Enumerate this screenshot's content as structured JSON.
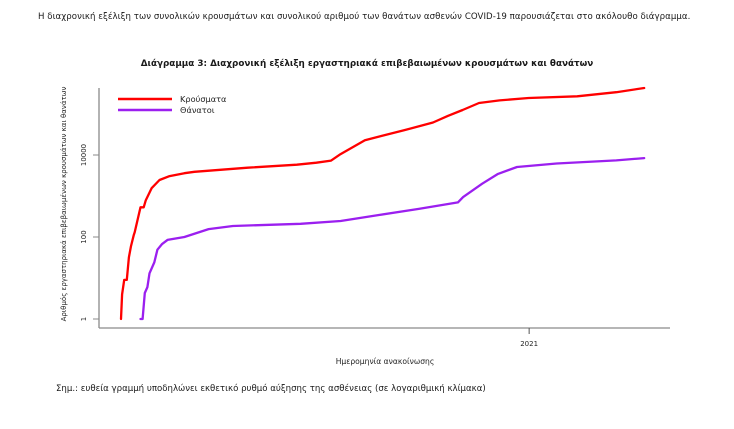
{
  "intro_text": "Η διαχρονική εξέλιξη των συνολικών κρουσμάτων και συνολικού αριθμού των θανάτων ασθενών COVID-19 παρουσιάζεται στο ακόλουθο διάγραμμα.",
  "note_text": "Σημ.: ευθεία γραμμή υποδηλώνει εκθετικό ρυθμό αύξησης της ασθένειας (σε λογαριθμική κλίμακα)",
  "chart_data": {
    "type": "line",
    "title": "Διάγραμμα 3: Διαχρονική εξέλιξη εργαστηριακά επιβεβαιωμένων κρουσμάτων και θανάτων",
    "xlabel": "Ημερομηνία ανακοίνωσης",
    "ylabel": "Αριθμός εργαστηριακά επιβεβαιωμένων κρουσμάτων και θανάτων",
    "yscale": "log",
    "y_ticks": [
      {
        "label": "1",
        "value": 1
      },
      {
        "label": "100",
        "value": 100
      },
      {
        "label": "10000",
        "value": 10000
      }
    ],
    "x_ticks": [
      {
        "label": "2021",
        "x_fraction": 0.773
      }
    ],
    "ylim": [
      1,
      400000
    ],
    "grid": false,
    "legend_position": "top-left",
    "x_note": "x is fraction of the time span from first case (early 2020) to last data point (~mid 2021)",
    "series": [
      {
        "name": "Κρούσματα",
        "color": "#ff0000",
        "points": [
          [
            0.0,
            1
          ],
          [
            0.002,
            4
          ],
          [
            0.006,
            9
          ],
          [
            0.011,
            9
          ],
          [
            0.015,
            32
          ],
          [
            0.019,
            60
          ],
          [
            0.024,
            110
          ],
          [
            0.026,
            130
          ],
          [
            0.037,
            530
          ],
          [
            0.043,
            530
          ],
          [
            0.047,
            790
          ],
          [
            0.058,
            1550
          ],
          [
            0.073,
            2450
          ],
          [
            0.092,
            3050
          ],
          [
            0.12,
            3600
          ],
          [
            0.139,
            3900
          ],
          [
            0.24,
            4900
          ],
          [
            0.333,
            5800
          ],
          [
            0.37,
            6500
          ],
          [
            0.398,
            7300
          ],
          [
            0.416,
            10500
          ],
          [
            0.462,
            23000
          ],
          [
            0.536,
            40000
          ],
          [
            0.591,
            62000
          ],
          [
            0.619,
            90000
          ],
          [
            0.647,
            125000
          ],
          [
            0.678,
            185000
          ],
          [
            0.717,
            215000
          ],
          [
            0.772,
            245000
          ],
          [
            0.864,
            270000
          ],
          [
            0.938,
            340000
          ],
          [
            0.991,
            430000
          ]
        ]
      },
      {
        "name": "Θάνατοι",
        "color": "#9b1fef",
        "points": [
          [
            0.037,
            1
          ],
          [
            0.041,
            1
          ],
          [
            0.045,
            4.3
          ],
          [
            0.05,
            6
          ],
          [
            0.054,
            13
          ],
          [
            0.063,
            24
          ],
          [
            0.069,
            49
          ],
          [
            0.078,
            68
          ],
          [
            0.088,
            85
          ],
          [
            0.12,
            100
          ],
          [
            0.166,
            156
          ],
          [
            0.212,
            185
          ],
          [
            0.34,
            210
          ],
          [
            0.416,
            245
          ],
          [
            0.49,
            345
          ],
          [
            0.564,
            485
          ],
          [
            0.638,
            700
          ],
          [
            0.648,
            940
          ],
          [
            0.684,
            2000
          ],
          [
            0.714,
            3450
          ],
          [
            0.75,
            5100
          ],
          [
            0.825,
            6200
          ],
          [
            0.938,
            7400
          ],
          [
            0.991,
            8400
          ]
        ]
      }
    ]
  }
}
